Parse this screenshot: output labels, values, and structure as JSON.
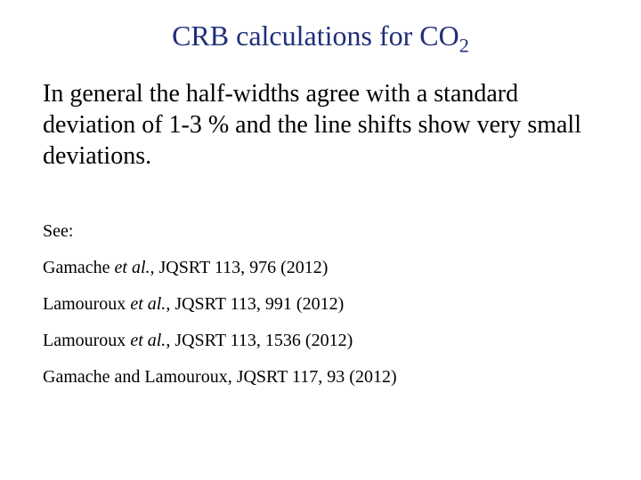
{
  "title": {
    "prefix": "CRB calculations for CO",
    "subscript": "2",
    "color": "#1f2e79",
    "fontsize": 32
  },
  "body": {
    "text": "In general the half-widths agree with a standard deviation of 1-3 % and the line shifts show very small deviations.",
    "fontsize": 28,
    "color": "#000000"
  },
  "see_label": "See:",
  "references": [
    {
      "authors": "Gamache ",
      "etal": "et al.",
      "rest": ", JQSRT 113, 976 (2012)"
    },
    {
      "authors": "Lamouroux ",
      "etal": "et al.",
      "rest": ", JQSRT 113, 991 (2012)"
    },
    {
      "authors": "Lamouroux ",
      "etal": "et al.",
      "rest": ", JQSRT 113, 1536 (2012)"
    },
    {
      "authors": "Gamache and Lamouroux",
      "etal": "",
      "rest": ", JQSRT 117, 93 (2012)"
    }
  ],
  "ref_fontsize": 20,
  "background_color": "#ffffff"
}
